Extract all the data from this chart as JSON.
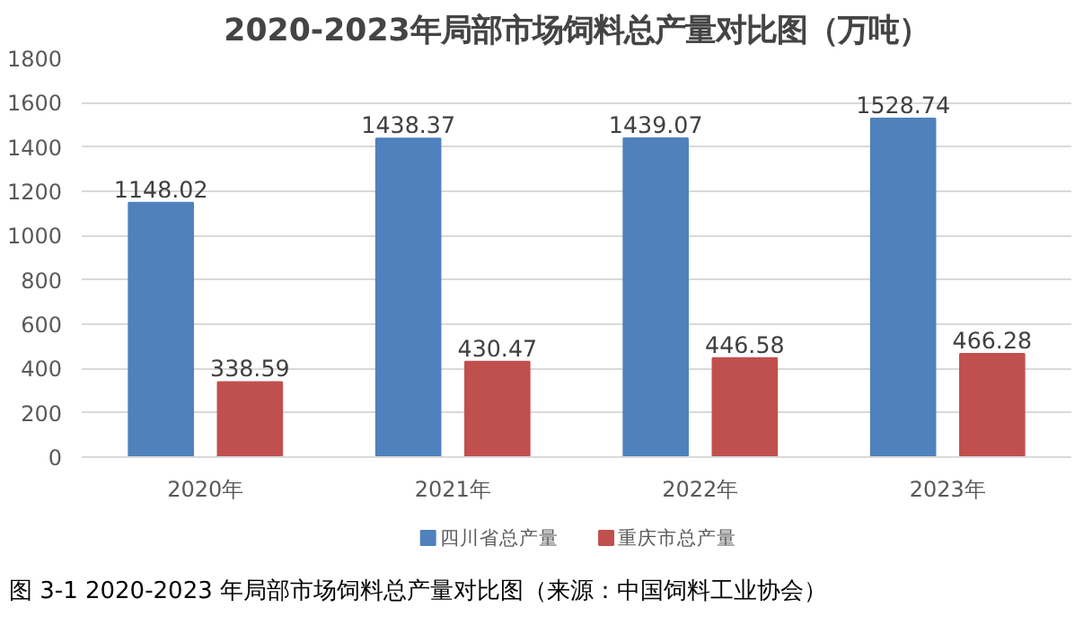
{
  "chart_data": {
    "type": "bar",
    "title": "2020-2023年局部市场饲料总产量对比图（万吨）",
    "categories": [
      "2020年",
      "2021年",
      "2022年",
      "2023年"
    ],
    "series": [
      {
        "name": "四川省总产量",
        "color": "#4f81bd",
        "values": [
          1148.02,
          1438.37,
          1439.07,
          1528.74
        ]
      },
      {
        "name": "重庆市总产量",
        "color": "#c0504d",
        "values": [
          338.59,
          430.47,
          446.58,
          466.28
        ]
      }
    ],
    "ylim": [
      0,
      1800
    ],
    "yticks": [
      0,
      200,
      400,
      600,
      800,
      1000,
      1200,
      1400,
      1600,
      1800
    ],
    "grid": "y",
    "legend": "bottom",
    "data_labels": true,
    "annotations": [
      "图 3-1   2020-2023 年局部市场饲料总产量对比图（来源：中国饲料工业协会）"
    ]
  }
}
